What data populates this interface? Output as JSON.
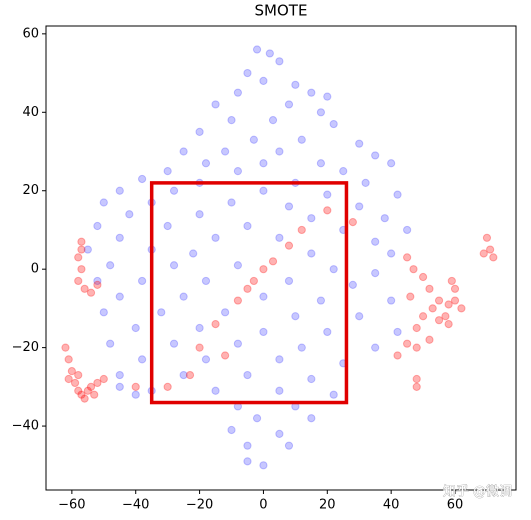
{
  "chart_data": {
    "type": "scatter",
    "title": "SMOTE",
    "xlim": [
      -68.1,
      79.1
    ],
    "ylim": [
      -56.3,
      62.0
    ],
    "xticks": [
      {
        "value": -60,
        "label": "−60"
      },
      {
        "value": -40,
        "label": "−40"
      },
      {
        "value": -20,
        "label": "−20"
      },
      0,
      20,
      40,
      60
    ],
    "yticks": [
      {
        "value": -40,
        "label": "−40"
      },
      {
        "value": -20,
        "label": "−20"
      },
      0,
      20,
      40,
      60
    ],
    "highlight_box": {
      "x": [
        -35,
        26
      ],
      "y": [
        -34,
        22
      ],
      "color": "#e00000"
    },
    "watermark": "知乎 @微调",
    "series": [
      {
        "color": "#0000ff",
        "alpha": 0.22,
        "x": [
          -2,
          2,
          5,
          -5,
          0,
          10,
          15,
          -8,
          20,
          -15,
          8,
          18,
          -10,
          3,
          22,
          -20,
          -3,
          12,
          30,
          -25,
          -12,
          5,
          35,
          -18,
          0,
          18,
          40,
          -30,
          -8,
          25,
          -38,
          -20,
          10,
          32,
          -45,
          -28,
          0,
          20,
          42,
          -50,
          -35,
          -10,
          8,
          30,
          -42,
          -20,
          15,
          38,
          -52,
          -30,
          -5,
          25,
          45,
          -45,
          -15,
          5,
          35,
          -55,
          -35,
          -22,
          15,
          40,
          -48,
          -28,
          -8,
          22,
          35,
          -52,
          -38,
          -18,
          8,
          28,
          -45,
          -25,
          0,
          18,
          40,
          -50,
          -32,
          -12,
          10,
          30,
          -40,
          -20,
          0,
          20,
          42,
          -48,
          -28,
          -8,
          12,
          35,
          -38,
          -18,
          5,
          25,
          -45,
          -25,
          -5,
          15,
          -35,
          -15,
          5,
          22,
          -8,
          10,
          -2,
          15,
          -10,
          5,
          -5,
          8,
          -5,
          0,
          -45,
          -40
        ],
        "values": [
          56,
          55,
          53,
          50,
          48,
          47,
          45,
          45,
          44,
          42,
          42,
          40,
          38,
          38,
          37,
          35,
          33,
          33,
          32,
          30,
          30,
          30,
          29,
          27,
          27,
          27,
          27,
          25,
          25,
          25,
          23,
          22,
          22,
          22,
          20,
          20,
          20,
          19,
          19,
          17,
          17,
          17,
          16,
          16,
          14,
          14,
          13,
          13,
          11,
          11,
          11,
          10,
          10,
          8,
          8,
          8,
          7,
          5,
          5,
          4,
          4,
          4,
          1,
          1,
          1,
          0,
          -1,
          -3,
          -3,
          -3,
          -3,
          -4,
          -7,
          -7,
          -7,
          -8,
          -8,
          -11,
          -11,
          -11,
          -12,
          -12,
          -15,
          -15,
          -16,
          -16,
          -16,
          -19,
          -19,
          -19,
          -20,
          -20,
          -23,
          -23,
          -23,
          -24,
          -27,
          -27,
          -27,
          -28,
          -31,
          -31,
          -31,
          -32,
          -35,
          -35,
          -38,
          -38,
          -41,
          -42,
          -45,
          -45,
          -49,
          -50,
          -30,
          -32
        ]
      },
      {
        "color": "#ff0000",
        "alpha": 0.3,
        "x": [
          -62,
          -61,
          -60,
          -61,
          -59,
          -58,
          -57,
          -56,
          -55,
          -54,
          -53,
          -58,
          -52,
          -50,
          -57,
          -58,
          -57,
          -58,
          -56,
          -54,
          -52,
          -57,
          45,
          47,
          50,
          52,
          55,
          58,
          60,
          62,
          59,
          60,
          53,
          55,
          50,
          48,
          45,
          48,
          42,
          52,
          57,
          58,
          46,
          70,
          71,
          69,
          72,
          48,
          48,
          -5,
          -8,
          -3,
          0,
          3,
          8,
          12,
          -15,
          -20,
          -23,
          -30,
          -12,
          20,
          28,
          -40
        ],
        "values": [
          -20,
          -23,
          -26,
          -28,
          -29,
          -31,
          -32,
          -33,
          -31,
          -30,
          -32,
          -27,
          -29,
          -28,
          5,
          3,
          0,
          -3,
          -5,
          -6,
          -4,
          7,
          3,
          0,
          -2,
          -5,
          -8,
          -9,
          -8,
          -10,
          -3,
          -5,
          -10,
          -13,
          -12,
          -15,
          -19,
          -20,
          -22,
          -18,
          -12,
          -14,
          -7,
          8,
          5,
          4,
          3,
          -28,
          -30,
          -5,
          -8,
          -3,
          0,
          2,
          6,
          10,
          -14,
          -20,
          -27,
          -30,
          -22,
          15,
          12,
          -30
        ]
      }
    ]
  }
}
